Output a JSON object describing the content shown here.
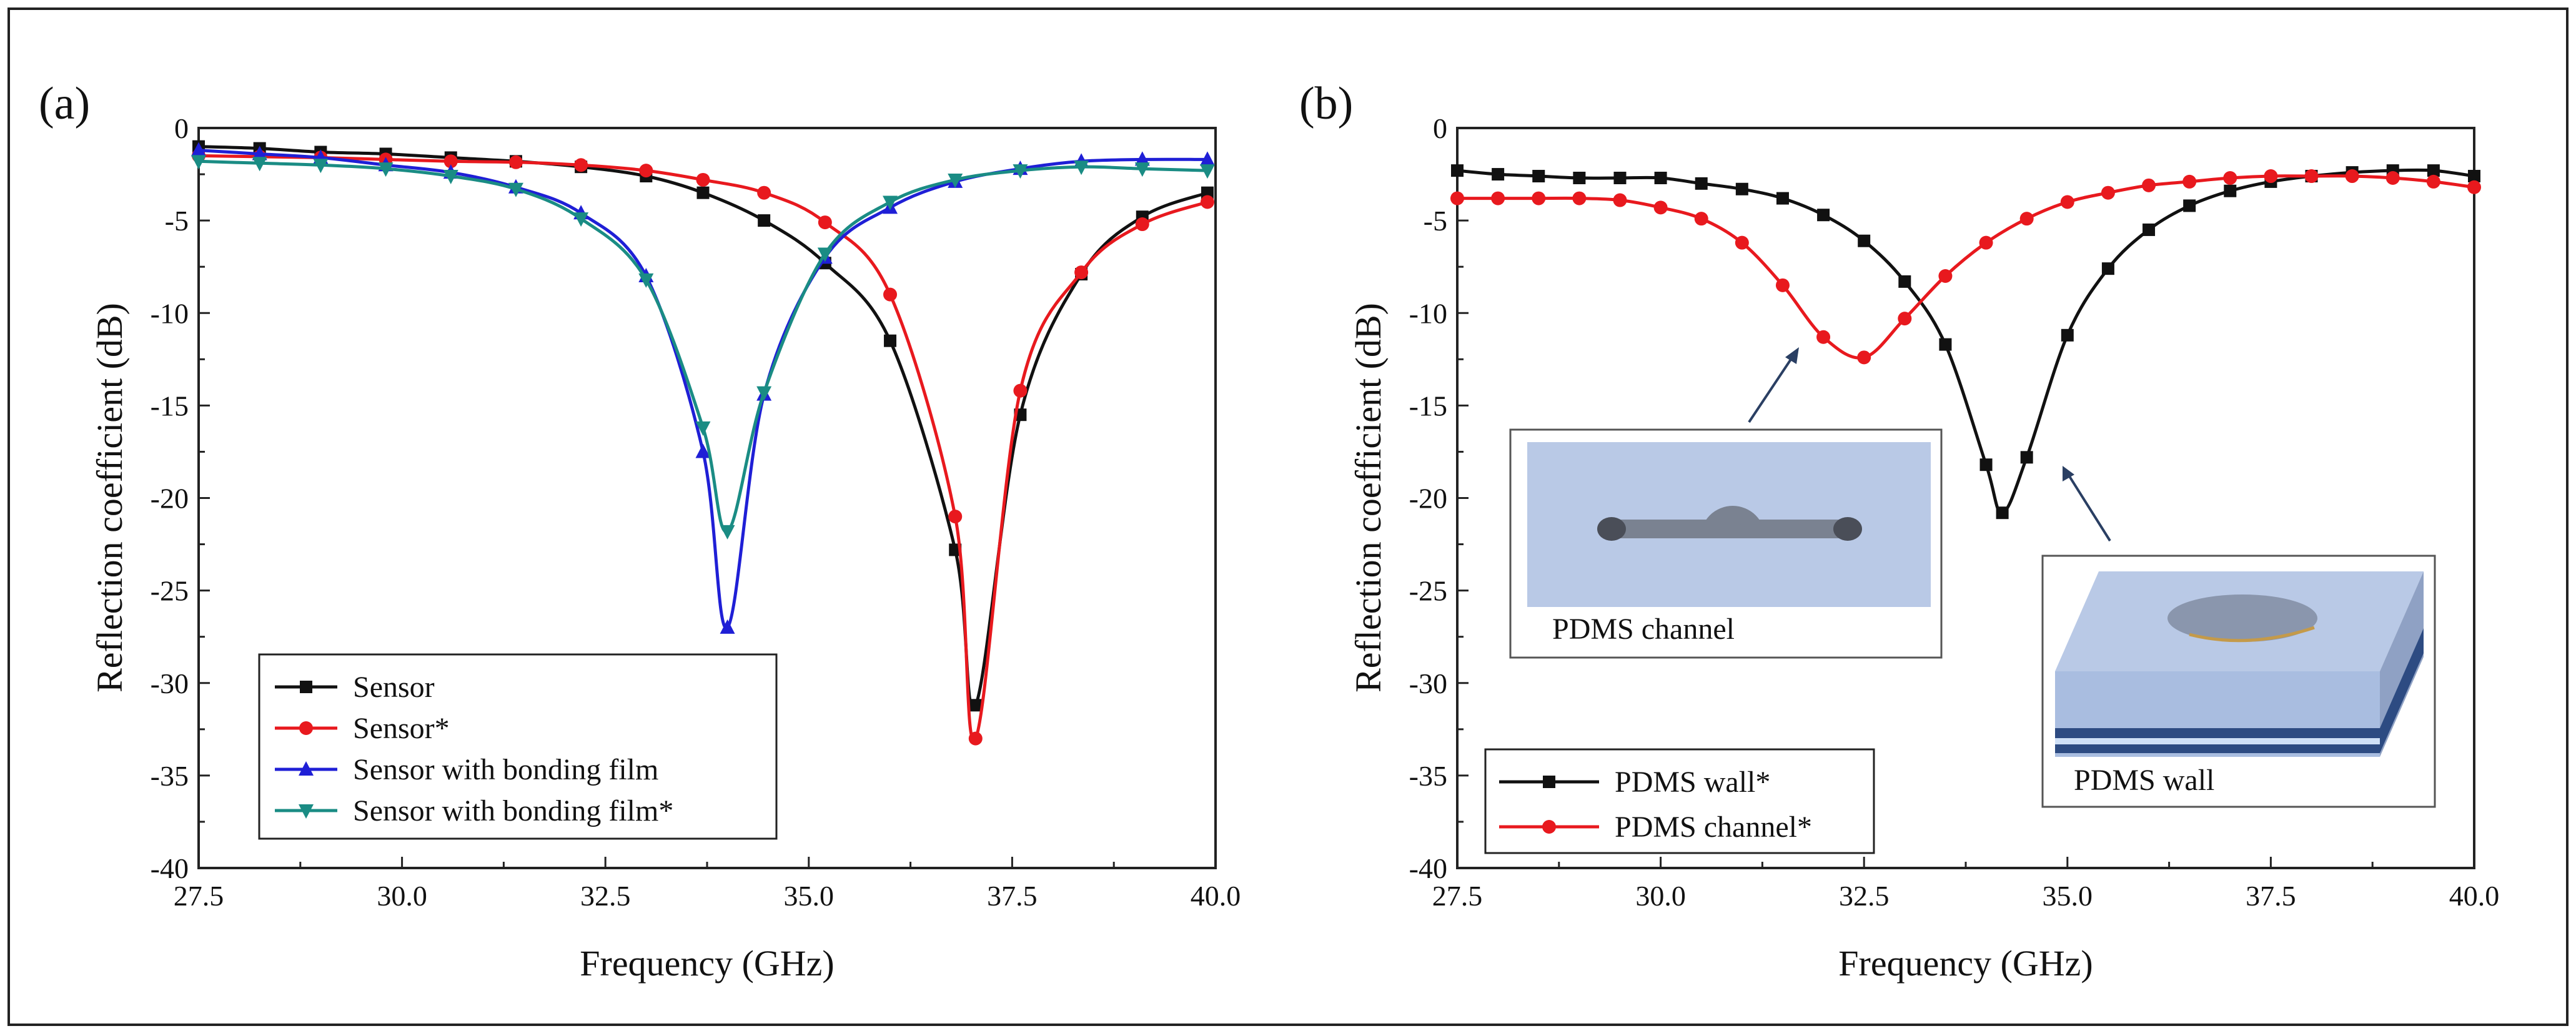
{
  "chart_data": [
    {
      "panel_label": "(a)",
      "type": "line",
      "xlabel": "Frequency (GHz)",
      "ylabel": "Reflection coefficient (dB)",
      "xlim": [
        27.5,
        40.0
      ],
      "ylim": [
        -40,
        0
      ],
      "xticks": [
        "27.5",
        "30.0",
        "32.5",
        "35.0",
        "37.5",
        "40.0"
      ],
      "yticks": [
        "0",
        "-5",
        "-10",
        "-15",
        "-20",
        "-25",
        "-30",
        "-35",
        "-40"
      ],
      "legend_position": "bottom-left",
      "series": [
        {
          "name": "Sensor",
          "color": "#111111",
          "marker": "square",
          "x": [
            27.5,
            28.25,
            29.0,
            29.8,
            30.6,
            31.4,
            32.2,
            33.0,
            33.7,
            34.45,
            35.2,
            36.0,
            36.8,
            37.05,
            37.6,
            38.35,
            39.1,
            39.9
          ],
          "y": [
            -1.0,
            -1.1,
            -1.3,
            -1.4,
            -1.6,
            -1.8,
            -2.1,
            -2.6,
            -3.5,
            -5.0,
            -7.3,
            -11.5,
            -22.8,
            -31.2,
            -15.5,
            -7.9,
            -4.8,
            -3.5
          ]
        },
        {
          "name": "Sensor*",
          "color": "#e8191e",
          "marker": "circle",
          "x": [
            27.5,
            28.25,
            29.0,
            29.8,
            30.6,
            31.4,
            32.2,
            33.0,
            33.7,
            34.45,
            35.2,
            36.0,
            36.8,
            37.05,
            37.6,
            38.35,
            39.1,
            39.9
          ],
          "y": [
            -1.5,
            -1.55,
            -1.6,
            -1.7,
            -1.8,
            -1.85,
            -2.0,
            -2.3,
            -2.8,
            -3.5,
            -5.1,
            -9.0,
            -21.0,
            -33.0,
            -14.2,
            -7.8,
            -5.2,
            -4.0
          ]
        },
        {
          "name": "Sensor with bonding film",
          "color": "#1f1fd6",
          "marker": "triangle-up",
          "x": [
            27.5,
            28.25,
            29.0,
            29.8,
            30.6,
            31.4,
            32.2,
            33.0,
            33.7,
            34.0,
            34.45,
            35.2,
            36.0,
            36.8,
            37.6,
            38.35,
            39.1,
            39.9
          ],
          "y": [
            -1.2,
            -1.4,
            -1.6,
            -2.0,
            -2.4,
            -3.2,
            -4.6,
            -8.0,
            -17.5,
            -27.0,
            -14.4,
            -7.0,
            -4.3,
            -2.9,
            -2.2,
            -1.8,
            -1.7,
            -1.7
          ]
        },
        {
          "name": "Sensor with bonding film*",
          "color": "#1a8c84",
          "marker": "triangle-down",
          "x": [
            27.5,
            28.25,
            29.0,
            29.8,
            30.6,
            31.4,
            32.2,
            33.0,
            33.7,
            34.0,
            34.45,
            35.2,
            36.0,
            36.8,
            37.6,
            38.35,
            39.1,
            39.9
          ],
          "y": [
            -1.8,
            -1.9,
            -2.0,
            -2.2,
            -2.6,
            -3.3,
            -4.9,
            -8.2,
            -16.2,
            -21.8,
            -14.3,
            -6.8,
            -4.0,
            -2.8,
            -2.3,
            -2.1,
            -2.2,
            -2.3
          ]
        }
      ]
    },
    {
      "panel_label": "(b)",
      "type": "line",
      "xlabel": "Frequency (GHz)",
      "ylabel": "Reflection coefficient (dB)",
      "xlim": [
        27.5,
        40.0
      ],
      "ylim": [
        -40,
        0
      ],
      "xticks": [
        "27.5",
        "30.0",
        "32.5",
        "35.0",
        "37.5",
        "40.0"
      ],
      "yticks": [
        "0",
        "-5",
        "-10",
        "-15",
        "-20",
        "-25",
        "-30",
        "-35",
        "-40"
      ],
      "legend_position": "bottom-left",
      "series": [
        {
          "name": "PDMS wall*",
          "color": "#111111",
          "marker": "square",
          "x": [
            27.5,
            28.0,
            28.5,
            29.0,
            29.5,
            30.0,
            30.5,
            31.0,
            31.5,
            32.0,
            32.5,
            33.0,
            33.5,
            34.0,
            34.2,
            34.5,
            35.0,
            35.5,
            36.0,
            36.5,
            37.0,
            37.5,
            38.0,
            38.5,
            39.0,
            39.5,
            40.0
          ],
          "y": [
            -2.3,
            -2.5,
            -2.6,
            -2.7,
            -2.7,
            -2.7,
            -3.0,
            -3.3,
            -3.8,
            -4.7,
            -6.1,
            -8.3,
            -11.7,
            -18.2,
            -20.8,
            -17.8,
            -11.2,
            -7.6,
            -5.5,
            -4.2,
            -3.4,
            -2.9,
            -2.6,
            -2.4,
            -2.3,
            -2.3,
            -2.6
          ]
        },
        {
          "name": "PDMS channel*",
          "color": "#e8191e",
          "marker": "circle",
          "x": [
            27.5,
            28.0,
            28.5,
            29.0,
            29.5,
            30.0,
            30.5,
            31.0,
            31.5,
            32.0,
            32.5,
            33.0,
            33.5,
            34.0,
            34.5,
            35.0,
            35.5,
            36.0,
            36.5,
            37.0,
            37.5,
            38.0,
            38.5,
            39.0,
            39.5,
            40.0
          ],
          "y": [
            -3.8,
            -3.8,
            -3.8,
            -3.8,
            -3.9,
            -4.3,
            -4.9,
            -6.2,
            -8.5,
            -11.3,
            -12.4,
            -10.3,
            -8.0,
            -6.2,
            -4.9,
            -4.0,
            -3.5,
            -3.1,
            -2.9,
            -2.7,
            -2.6,
            -2.6,
            -2.6,
            -2.7,
            -2.9,
            -3.2
          ]
        }
      ],
      "insets": [
        {
          "caption": "PDMS channel"
        },
        {
          "caption": "PDMS wall"
        }
      ]
    }
  ]
}
